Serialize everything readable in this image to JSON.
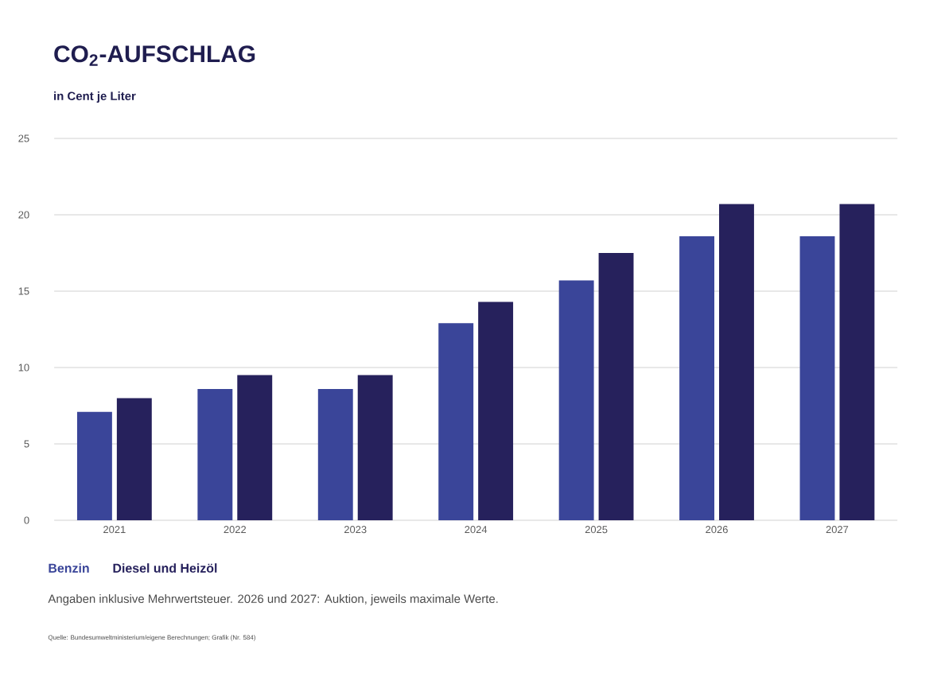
{
  "chart_data": {
    "type": "bar",
    "title": "CO$_{2}$-AUFSCHLAG",
    "ylabel": "in Cent je Liter",
    "categories": [
      "2021",
      "2022",
      "2023",
      "2024",
      "2025",
      "2026",
      "2027"
    ],
    "series": [
      {
        "name": "Benzin",
        "color": "#3a4599",
        "values": [
          7.1,
          8.6,
          8.6,
          12.9,
          15.7,
          18.6,
          18.6
        ]
      },
      {
        "name": "Diesel und Heizöl",
        "color": "#26215c",
        "values": [
          8.0,
          9.5,
          9.5,
          14.3,
          17.5,
          20.7,
          20.7
        ]
      }
    ],
    "ylim": [
      0,
      25
    ],
    "yticks": [
      0,
      5,
      10,
      15,
      20,
      25
    ],
    "grid": "y",
    "legend": "bottom left",
    "annotations": [
      "Angaben inklusive Mehrwertsteuer. 2026 und 2027: Auktion, jeweils maximale Werte.",
      "Quelle: Bundesumweltministerium/eigene Berechnungen; Grafik (Nr. 584)"
    ]
  }
}
